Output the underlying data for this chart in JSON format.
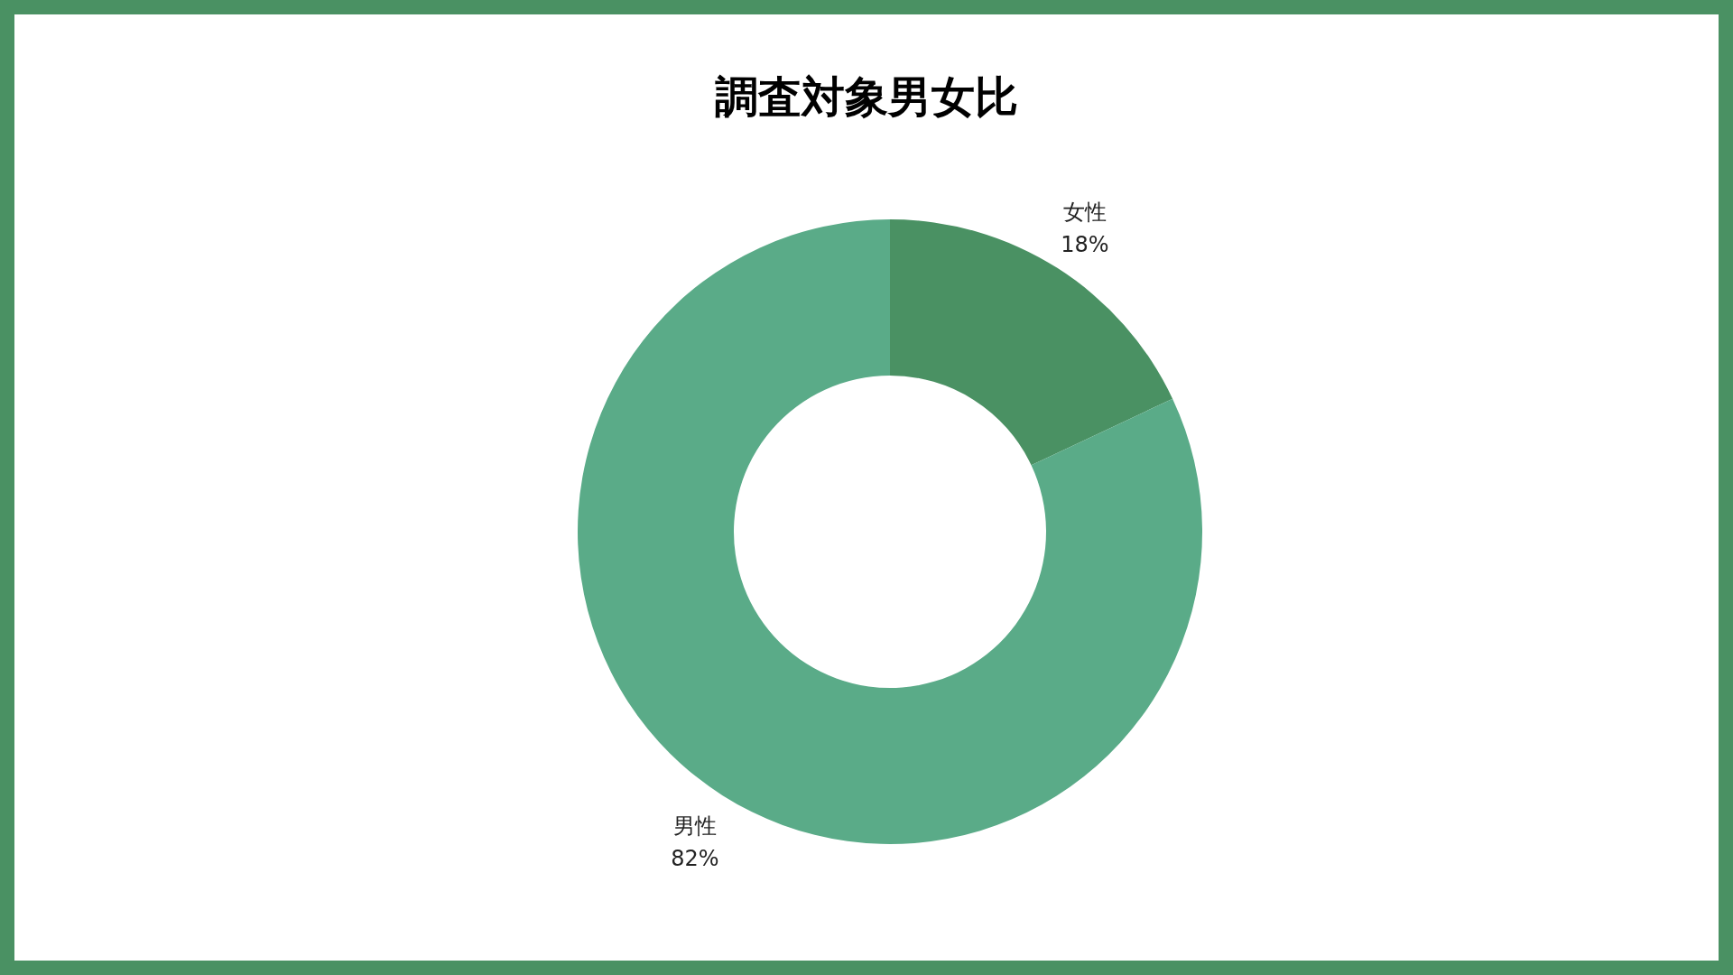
{
  "chart_data": {
    "type": "donut",
    "title": "調査対象男女比",
    "categories": [
      "女性",
      "男性"
    ],
    "values": [
      18,
      82
    ],
    "colors": [
      "#4a9163",
      "#5aab88"
    ],
    "value_labels": [
      "18%",
      "82%"
    ]
  }
}
